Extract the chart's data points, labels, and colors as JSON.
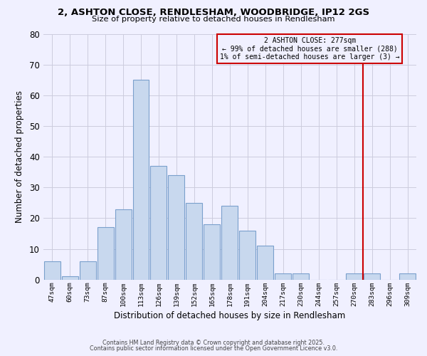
{
  "title1": "2, ASHTON CLOSE, RENDLESHAM, WOODBRIDGE, IP12 2GS",
  "title2": "Size of property relative to detached houses in Rendlesham",
  "xlabel": "Distribution of detached houses by size in Rendlesham",
  "ylabel": "Number of detached properties",
  "bar_labels": [
    "47sqm",
    "60sqm",
    "73sqm",
    "87sqm",
    "100sqm",
    "113sqm",
    "126sqm",
    "139sqm",
    "152sqm",
    "165sqm",
    "178sqm",
    "191sqm",
    "204sqm",
    "217sqm",
    "230sqm",
    "244sqm",
    "257sqm",
    "270sqm",
    "283sqm",
    "296sqm",
    "309sqm"
  ],
  "bar_heights": [
    6,
    1,
    6,
    17,
    23,
    65,
    37,
    34,
    25,
    18,
    24,
    16,
    11,
    2,
    2,
    0,
    0,
    2,
    2,
    0,
    2
  ],
  "bar_color": "#c8d8ee",
  "bar_edge_color": "#7aa0cc",
  "ylim": [
    0,
    80
  ],
  "yticks": [
    0,
    10,
    20,
    30,
    40,
    50,
    60,
    70,
    80
  ],
  "vline_x": 17.5,
  "vline_color": "#cc0000",
  "annotation_title": "2 ASHTON CLOSE: 277sqm",
  "annotation_line1": "← 99% of detached houses are smaller (288)",
  "annotation_line2": "1% of semi-detached houses are larger (3) →",
  "annotation_box_color": "#cc0000",
  "footer1": "Contains HM Land Registry data © Crown copyright and database right 2025.",
  "footer2": "Contains public sector information licensed under the Open Government Licence v3.0.",
  "bg_color": "#f0f0ff",
  "grid_color": "#ccccdd"
}
